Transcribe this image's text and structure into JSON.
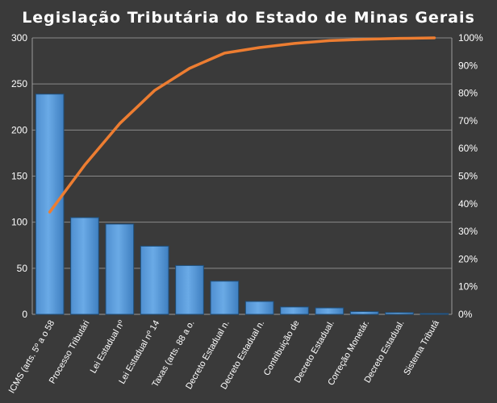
{
  "chart_data": {
    "type": "bar",
    "title": "Legislação Tributária do Estado de Minas Gerais",
    "categories": [
      "ICMS (arts. 5º a o 58",
      "Processo Tributári",
      "Lei Estadual nº",
      "Lei Estadual nº 14",
      "Taxas (arts. 88 a o.",
      "Decreto Estadual n.",
      "Decreto Estadual n.",
      "Contribuição de",
      "Decreto Estadual.",
      "Correção Monetár.",
      "Decreto Estadual.",
      "Sistema Tributá"
    ],
    "series": [
      {
        "type": "bar",
        "values": [
          239,
          105,
          98,
          74,
          53,
          36,
          14,
          8,
          7,
          3,
          2,
          1
        ],
        "color": "#5b9bd5"
      },
      {
        "type": "line",
        "axis": "right",
        "values": [
          37,
          54,
          69,
          81,
          89,
          94.5,
          96.5,
          98,
          99,
          99.5,
          99.8,
          100
        ],
        "color": "#ed7d31"
      }
    ],
    "ylim": [
      0,
      300
    ],
    "y_ticks": [
      "0",
      "50",
      "100",
      "150",
      "200",
      "250",
      "300"
    ],
    "y2lim": [
      0,
      100
    ],
    "y2_ticks": [
      "0%",
      "10%",
      "20%",
      "30%",
      "40%",
      "50%",
      "60%",
      "70%",
      "80%",
      "90%",
      "100%"
    ],
    "grid": true,
    "legend": "none"
  }
}
